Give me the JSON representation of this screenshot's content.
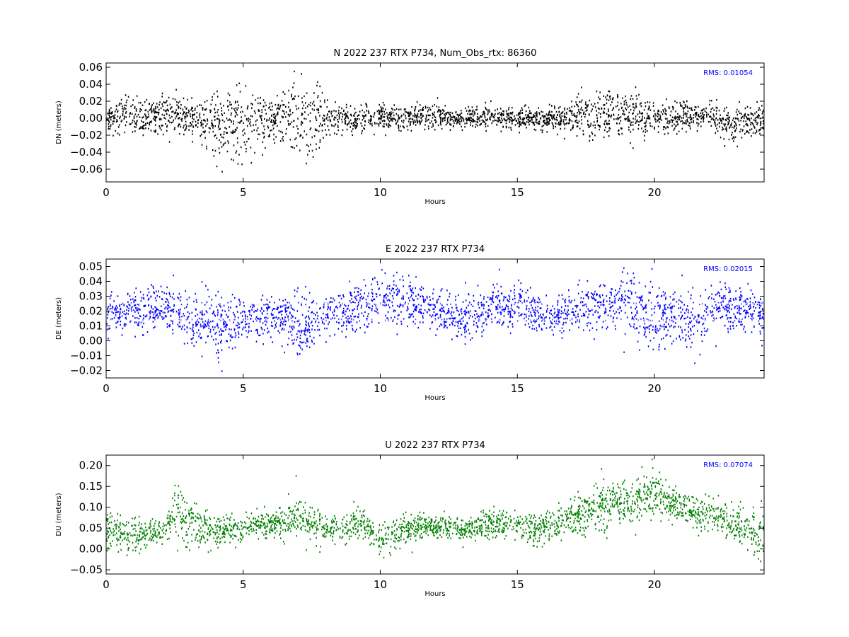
{
  "chart_data": [
    {
      "type": "scatter",
      "title": "N 2022 237 RTX  P734, Num_Obs_rtx: 86360",
      "xlabel": "Hours",
      "ylabel": "DN (meters)",
      "xlim": [
        0,
        24
      ],
      "ylim": [
        -0.075,
        0.065
      ],
      "xticks": [
        "0",
        "5",
        "10",
        "15",
        "20"
      ],
      "yticks": [
        "0.06",
        "0.04",
        "0.02",
        "0.00",
        "−0.02",
        "−0.04",
        "−0.06"
      ],
      "rms_text": "RMS:  0.01054",
      "color": "#000000",
      "series": [
        {
          "x": [
            0,
            0.5,
            1,
            1.5,
            2,
            2.5,
            3,
            3.5,
            4,
            4.5,
            5,
            5.5,
            6,
            6.5,
            7,
            7.5,
            8,
            8.5,
            9,
            9.5,
            10,
            10.5,
            11,
            11.5,
            12,
            12.5,
            13,
            13.5,
            14,
            14.5,
            15,
            15.5,
            16,
            16.5,
            17,
            17.5,
            18,
            18.5,
            19,
            19.5,
            20,
            20.5,
            21,
            21.5,
            22,
            22.5,
            23,
            23.5,
            24
          ],
          "center": [
            0.002,
            0.003,
            0.004,
            0.002,
            0.003,
            0.005,
            0.001,
            -0.003,
            -0.006,
            -0.004,
            -0.002,
            -0.003,
            -0.001,
            0.002,
            0.004,
            0.002,
            0.001,
            0.0,
            -0.001,
            0.0,
            0.002,
            0.002,
            0.001,
            0.002,
            0.003,
            0.001,
            0.0,
            0.001,
            0.002,
            0.001,
            0.0,
            0.001,
            0.0,
            0.001,
            0.003,
            0.004,
            0.006,
            0.008,
            0.004,
            0.002,
            0.001,
            0.002,
            0.003,
            0.004,
            0.006,
            -0.004,
            -0.006,
            -0.003,
            -0.002
          ],
          "spread": [
            0.012,
            0.018,
            0.02,
            0.016,
            0.02,
            0.022,
            0.018,
            0.022,
            0.036,
            0.038,
            0.042,
            0.036,
            0.02,
            0.03,
            0.05,
            0.042,
            0.018,
            0.016,
            0.016,
            0.016,
            0.014,
            0.014,
            0.012,
            0.012,
            0.013,
            0.011,
            0.01,
            0.011,
            0.014,
            0.013,
            0.011,
            0.012,
            0.012,
            0.014,
            0.018,
            0.024,
            0.026,
            0.03,
            0.022,
            0.02,
            0.016,
            0.018,
            0.016,
            0.014,
            0.014,
            0.016,
            0.017,
            0.016,
            0.015
          ]
        }
      ]
    },
    {
      "type": "scatter",
      "title": "E 2022 237 RTX  P734",
      "xlabel": "Hours",
      "ylabel": "DE (meters)",
      "xlim": [
        0,
        24
      ],
      "ylim": [
        -0.025,
        0.055
      ],
      "xticks": [
        "0",
        "5",
        "10",
        "15",
        "20"
      ],
      "yticks": [
        "0.05",
        "0.04",
        "0.03",
        "0.02",
        "0.01",
        "0.00",
        "−0.01",
        "−0.02"
      ],
      "rms_text": "RMS:  0.02015",
      "color": "#0000ff",
      "series": [
        {
          "x": [
            0,
            0.5,
            1,
            1.5,
            2,
            2.5,
            3,
            3.5,
            4,
            4.5,
            5,
            5.5,
            6,
            6.5,
            7,
            7.5,
            8,
            8.5,
            9,
            9.5,
            10,
            10.5,
            11,
            11.5,
            12,
            12.5,
            13,
            13.5,
            14,
            14.5,
            15,
            15.5,
            16,
            16.5,
            17,
            17.5,
            18,
            18.5,
            19,
            19.5,
            20,
            20.5,
            21,
            21.5,
            22,
            22.5,
            23,
            23.5,
            24
          ],
          "center": [
            0.02,
            0.019,
            0.02,
            0.021,
            0.022,
            0.023,
            0.015,
            0.012,
            0.01,
            0.012,
            0.015,
            0.016,
            0.018,
            0.016,
            0.01,
            0.013,
            0.017,
            0.019,
            0.02,
            0.024,
            0.028,
            0.029,
            0.027,
            0.024,
            0.022,
            0.018,
            0.015,
            0.018,
            0.023,
            0.025,
            0.024,
            0.02,
            0.017,
            0.018,
            0.021,
            0.023,
            0.024,
            0.022,
            0.025,
            0.02,
            0.014,
            0.016,
            0.018,
            0.012,
            0.02,
            0.022,
            0.021,
            0.022,
            0.02
          ],
          "spread": [
            0.012,
            0.012,
            0.013,
            0.014,
            0.014,
            0.014,
            0.014,
            0.016,
            0.02,
            0.016,
            0.016,
            0.014,
            0.014,
            0.016,
            0.02,
            0.016,
            0.014,
            0.013,
            0.013,
            0.016,
            0.018,
            0.016,
            0.015,
            0.014,
            0.013,
            0.012,
            0.014,
            0.013,
            0.014,
            0.014,
            0.013,
            0.012,
            0.012,
            0.012,
            0.013,
            0.014,
            0.015,
            0.014,
            0.02,
            0.016,
            0.022,
            0.016,
            0.016,
            0.022,
            0.016,
            0.014,
            0.014,
            0.014,
            0.014
          ]
        }
      ]
    },
    {
      "type": "scatter",
      "title": "U 2022 237 RTX  P734",
      "xlabel": "Hours",
      "ylabel": "DU (meters)",
      "xlim": [
        0,
        24
      ],
      "ylim": [
        -0.06,
        0.225
      ],
      "xticks": [
        "0",
        "5",
        "10",
        "15",
        "20"
      ],
      "yticks": [
        "0.20",
        "0.15",
        "0.10",
        "0.05",
        "0.00",
        "−0.05"
      ],
      "rms_text": "RMS:  0.07074",
      "color": "#008000",
      "series": [
        {
          "x": [
            0,
            0.5,
            1,
            1.5,
            2,
            2.5,
            3,
            3.5,
            4,
            4.5,
            5,
            5.5,
            6,
            6.5,
            7,
            7.5,
            8,
            8.5,
            9,
            9.5,
            10,
            10.5,
            11,
            11.5,
            12,
            12.5,
            13,
            13.5,
            14,
            14.5,
            15,
            15.5,
            16,
            16.5,
            17,
            17.5,
            18,
            18.5,
            19,
            19.5,
            20,
            20.5,
            21,
            21.5,
            22,
            22.5,
            23,
            23.5,
            24
          ],
          "center": [
            0.045,
            0.04,
            0.035,
            0.04,
            0.045,
            0.085,
            0.07,
            0.05,
            0.045,
            0.05,
            0.055,
            0.06,
            0.06,
            0.07,
            0.085,
            0.06,
            0.05,
            0.055,
            0.06,
            0.055,
            0.02,
            0.04,
            0.055,
            0.06,
            0.055,
            0.055,
            0.045,
            0.055,
            0.065,
            0.065,
            0.055,
            0.05,
            0.055,
            0.06,
            0.075,
            0.085,
            0.105,
            0.12,
            0.115,
            0.125,
            0.135,
            0.11,
            0.1,
            0.085,
            0.09,
            0.065,
            0.055,
            0.045,
            0.035
          ],
          "spread": [
            0.04,
            0.04,
            0.045,
            0.03,
            0.03,
            0.05,
            0.06,
            0.04,
            0.035,
            0.035,
            0.035,
            0.03,
            0.03,
            0.035,
            0.04,
            0.035,
            0.03,
            0.035,
            0.035,
            0.035,
            0.035,
            0.035,
            0.035,
            0.03,
            0.025,
            0.025,
            0.025,
            0.025,
            0.03,
            0.03,
            0.03,
            0.03,
            0.03,
            0.03,
            0.035,
            0.045,
            0.055,
            0.05,
            0.045,
            0.05,
            0.05,
            0.04,
            0.035,
            0.035,
            0.035,
            0.035,
            0.04,
            0.05,
            0.05
          ]
        }
      ]
    }
  ]
}
